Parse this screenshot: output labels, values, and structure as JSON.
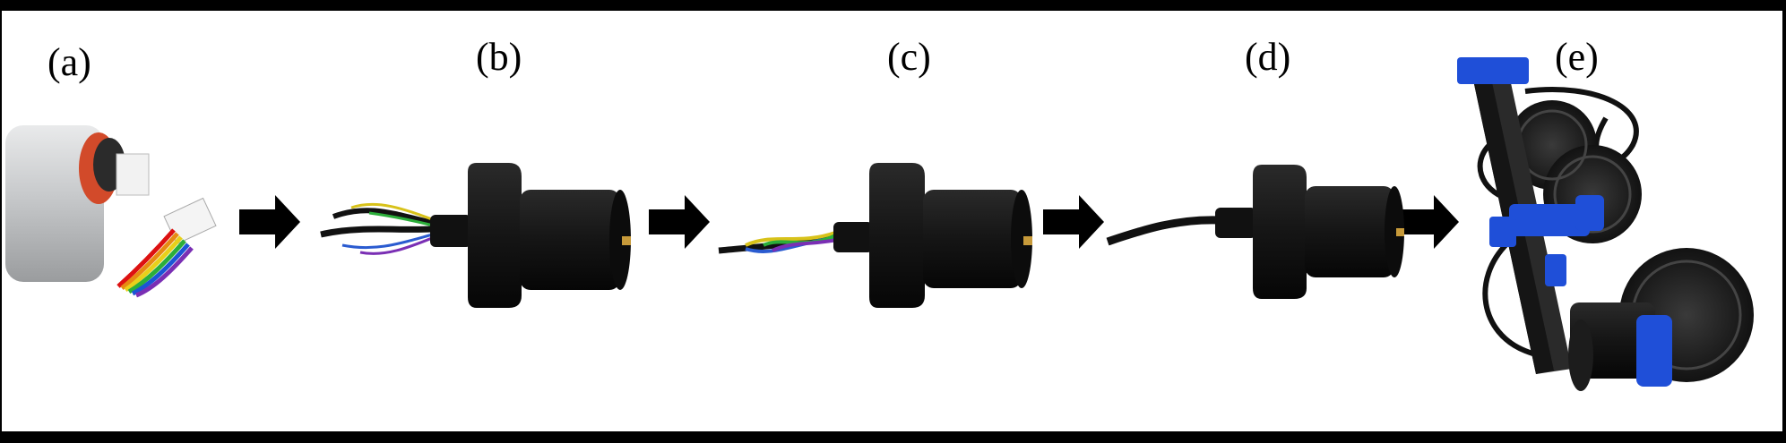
{
  "figure": {
    "panels": [
      {
        "id": "a",
        "label": "(a)"
      },
      {
        "id": "b",
        "label": "(b)"
      },
      {
        "id": "c",
        "label": "(c)"
      },
      {
        "id": "d",
        "label": "(d)"
      },
      {
        "id": "e",
        "label": "(e)"
      }
    ],
    "colors": {
      "frame": "#000000",
      "background": "#ffffff",
      "housing": "#141414",
      "bracket": "#1f4fd8",
      "motor_can": "#c9cbcd",
      "arrow": "#000000"
    },
    "icons": [
      "motor-image",
      "arrow-right-icon",
      "wheel-image",
      "cable-image"
    ]
  }
}
